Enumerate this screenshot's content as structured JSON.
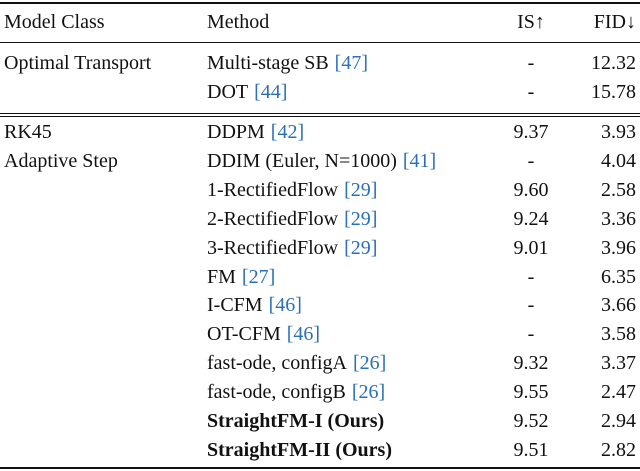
{
  "table": {
    "header": [
      "Model Class",
      "Method",
      "IS↑",
      "FID↓"
    ],
    "groups": [
      {
        "model_class": [
          "Optimal Transport"
        ],
        "rows": [
          {
            "method": "Multi-stage SB",
            "cite": "[47]",
            "is": "-",
            "fid": "12.32"
          },
          {
            "method": "DOT",
            "cite": "[44]",
            "is": "-",
            "fid": "15.78"
          }
        ]
      },
      {
        "model_class": [
          "RK45",
          "Adaptive Step"
        ],
        "rows": [
          {
            "method": "DDPM",
            "cite": "[42]",
            "is": "9.37",
            "fid": "3.93"
          },
          {
            "method": "DDIM (Euler, N=1000)",
            "cite": "[41]",
            "is": "-",
            "fid": "4.04"
          },
          {
            "method": "1-RectifiedFlow",
            "cite": "[29]",
            "is": "9.60",
            "fid": "2.58"
          },
          {
            "method": "2-RectifiedFlow",
            "cite": "[29]",
            "is": "9.24",
            "fid": "3.36"
          },
          {
            "method": "3-RectifiedFlow",
            "cite": "[29]",
            "is": "9.01",
            "fid": "3.96"
          },
          {
            "method": "FM",
            "cite": "[27]",
            "is": "-",
            "fid": "6.35"
          },
          {
            "method": "I-CFM",
            "cite": "[46]",
            "is": "-",
            "fid": "3.66"
          },
          {
            "method": "OT-CFM",
            "cite": "[46]",
            "is": "-",
            "fid": "3.58"
          },
          {
            "method": "fast-ode, configA",
            "cite": "[26]",
            "is": "9.32",
            "fid": "3.37"
          },
          {
            "method": "fast-ode, configB",
            "cite": "[26]",
            "is": "9.55",
            "fid": "2.47"
          },
          {
            "method": "StraightFM-I (Ours)",
            "is": "9.52",
            "fid": "2.94",
            "bold": true
          },
          {
            "method": "StraightFM-II (Ours)",
            "is": "9.51",
            "fid": "2.82",
            "bold": true
          }
        ]
      }
    ]
  }
}
